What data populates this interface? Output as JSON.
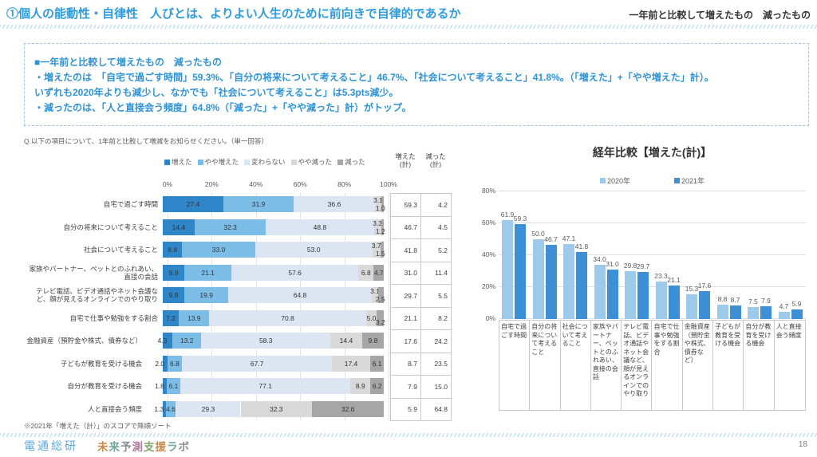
{
  "header": {
    "title": "①個人の能動性・自律性　人びとは、よりよい人生のために前向きで自律的であるか",
    "right_label": "一年前と比較して増えたもの　減ったもの"
  },
  "summary": {
    "lines": [
      "■一年前と比較して増えたもの　減ったもの",
      "・増えたのは　「自宅で過ごす時間」59.3%、「自分の将来について考えること」46.7%、「社会について考えること」41.8%。（「増えた」+「やや増えた」計）。",
      "いずれも2020年よりも減少し、なかでも「社会について考えること」は5.3pts減少。",
      "・減ったのは、「人と直接会う頻度」64.8%（「減った」+「やや減った」計）がトップ。"
    ]
  },
  "question": "Q.以下の項目について、1年前と比較して増減をお知らせください。（単一回答）",
  "footnote": "※2021年「増えた（計）」のスコアで降順ソート",
  "footer": {
    "brand": "電通総研",
    "brand2": "未来予測支援ラボ",
    "page": "18"
  },
  "colors": {
    "accent_blue": "#2E9BDB",
    "stacked_segments": [
      "#2E86C8",
      "#7CBDE8",
      "#DCE6F2",
      "#D9D9D9",
      "#A6A6A6"
    ],
    "year2020": "#9DC9EA",
    "year2021": "#3D8FD6",
    "brand2_palette": [
      "#C98A4B",
      "#6FA8A0",
      "#8E8E8E",
      "#B07A9E",
      "#7FA86F",
      "#C98A4B",
      "#6FA8A0",
      "#8E8E8E"
    ]
  },
  "chart_data": [
    {
      "type": "bar",
      "variant": "horizontal-stacked-100",
      "title": "",
      "legend": [
        "増えた",
        "やや増えた",
        "変わらない",
        "やや減った",
        "減った"
      ],
      "x_ticks": [
        "0%",
        "20%",
        "40%",
        "60%",
        "80%",
        "100%"
      ],
      "xlim": [
        0,
        100
      ],
      "grid": true,
      "categories": [
        "自宅で過ごす時間",
        "自分の将来について考えること",
        "社会について考えること",
        "家族やパートナー、ペットとのふれあい、直接の会話",
        "テレビ電話、ビデオ通話やネット会議など、顔が見えるオンラインでのやり取り",
        "自宅で仕事や勉強をする割合",
        "金融資産（預貯金や株式、債券など）",
        "子どもが教育を受ける機会",
        "自分が教育を受ける機会",
        "人と直接会う頻度"
      ],
      "series": [
        {
          "name": "増えた",
          "values": [
            27.4,
            14.4,
            8.8,
            9.9,
            9.8,
            7.2,
            4.3,
            2.0,
            1.8,
            1.3
          ]
        },
        {
          "name": "やや増えた",
          "values": [
            31.9,
            32.3,
            33.0,
            21.1,
            19.9,
            13.9,
            13.2,
            6.8,
            6.1,
            4.6
          ]
        },
        {
          "name": "変わらない",
          "values": [
            36.6,
            48.8,
            53.0,
            57.6,
            64.8,
            70.8,
            58.3,
            67.7,
            77.1,
            29.3
          ]
        },
        {
          "name": "やや減った",
          "values": [
            3.1,
            3.3,
            3.7,
            6.8,
            3.1,
            5.0,
            14.4,
            17.4,
            8.9,
            32.3
          ]
        },
        {
          "name": "減った",
          "values": [
            1.0,
            1.2,
            1.5,
            4.7,
            2.5,
            3.2,
            9.8,
            6.1,
            6.2,
            32.6
          ]
        }
      ],
      "totals_headers": [
        [
          "増えた",
          "(計)"
        ],
        [
          "減った",
          "(計)"
        ]
      ],
      "totals": [
        [
          59.3,
          4.2
        ],
        [
          46.7,
          4.5
        ],
        [
          41.8,
          5.2
        ],
        [
          31.0,
          11.4
        ],
        [
          29.7,
          5.5
        ],
        [
          21.1,
          8.2
        ],
        [
          17.6,
          24.2
        ],
        [
          8.7,
          23.5
        ],
        [
          7.9,
          15.0
        ],
        [
          5.9,
          64.8
        ]
      ]
    },
    {
      "type": "bar",
      "variant": "grouped-vertical",
      "title": "経年比較【増えた(計)】",
      "y_ticks": [
        "0%",
        "20%",
        "40%",
        "60%",
        "80%"
      ],
      "ylim": [
        0,
        80
      ],
      "grid": true,
      "legend_position": "top",
      "categories": [
        "自宅で過ごす時間",
        "自分の将来について考えること",
        "社会について考えること",
        "家族やパートナー、ペットとのふれあい、直接の会話",
        "テレビ電話、ビデオ通話やネット会議など、顔が見えるオンラインでのやり取り",
        "自宅で仕事や勉強をする割合",
        "金融資産（預貯金や株式、債券など）",
        "子どもが教育を受ける機会",
        "自分が教育を受ける機会",
        "人と直接会う頻度"
      ],
      "series": [
        {
          "name": "2020年",
          "values": [
            61.9,
            50.0,
            47.1,
            34.0,
            29.8,
            23.3,
            15.3,
            8.8,
            7.5,
            4.7
          ]
        },
        {
          "name": "2021年",
          "values": [
            59.3,
            46.7,
            41.8,
            31.0,
            29.7,
            21.1,
            17.6,
            8.7,
            7.9,
            5.9
          ]
        }
      ]
    }
  ]
}
